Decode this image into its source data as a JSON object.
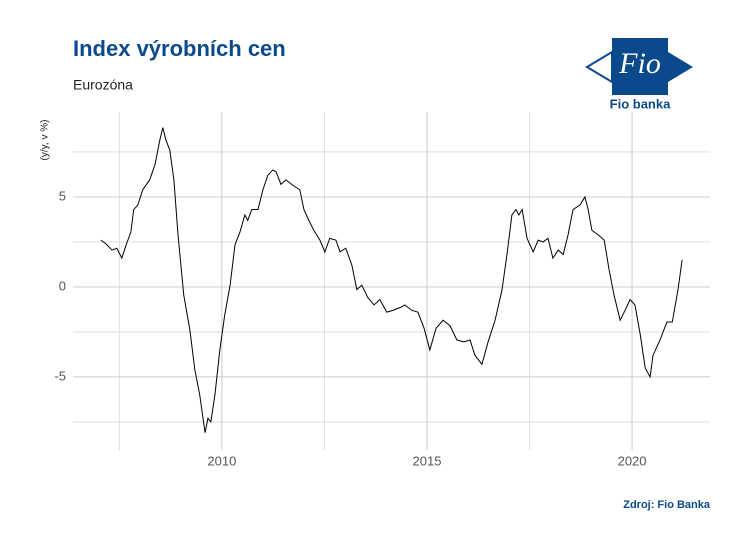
{
  "chart_data": {
    "type": "line",
    "title": "Index výrobních cen",
    "subtitle": "Eurozóna",
    "ylabel": "(y/y, v %)",
    "caption": "Zdroj: Fio Banka",
    "xlim": [
      2006.37,
      2021.9
    ],
    "xticks": [
      2010,
      2015,
      2020
    ],
    "x_minor_gridlines": [
      2007.5,
      2012.5,
      2017.5
    ],
    "ylim": [
      -9.06,
      9.72
    ],
    "yticks": [
      -5,
      0,
      5
    ],
    "y_minor_gridlines": [
      -7.5,
      -2.5,
      2.5,
      7.5
    ],
    "grid": true,
    "series": [
      {
        "color": "#000000",
        "x": [
          2007.05,
          2007.17,
          2007.32,
          2007.44,
          2007.56,
          2007.66,
          2007.78,
          2007.85,
          2007.95,
          2008.07,
          2008.24,
          2008.37,
          2008.49,
          2008.56,
          2008.63,
          2008.73,
          2008.83,
          2008.93,
          2009.07,
          2009.22,
          2009.34,
          2009.46,
          2009.54,
          2009.59,
          2009.66,
          2009.73,
          2009.83,
          2009.95,
          2010.07,
          2010.2,
          2010.32,
          2010.44,
          2010.56,
          2010.63,
          2010.73,
          2010.88,
          2011.0,
          2011.12,
          2011.24,
          2011.32,
          2011.44,
          2011.56,
          2011.73,
          2011.9,
          2012.0,
          2012.12,
          2012.24,
          2012.39,
          2012.51,
          2012.63,
          2012.78,
          2012.88,
          2013.02,
          2013.17,
          2013.29,
          2013.41,
          2013.56,
          2013.71,
          2013.85,
          2014.02,
          2014.17,
          2014.34,
          2014.46,
          2014.63,
          2014.78,
          2014.93,
          2015.07,
          2015.22,
          2015.39,
          2015.56,
          2015.73,
          2015.9,
          2016.05,
          2016.17,
          2016.34,
          2016.49,
          2016.66,
          2016.83,
          2016.95,
          2017.07,
          2017.17,
          2017.24,
          2017.32,
          2017.44,
          2017.59,
          2017.71,
          2017.83,
          2017.95,
          2018.07,
          2018.2,
          2018.32,
          2018.44,
          2018.56,
          2018.73,
          2018.85,
          2018.93,
          2019.02,
          2019.17,
          2019.32,
          2019.44,
          2019.56,
          2019.71,
          2019.83,
          2019.95,
          2020.07,
          2020.2,
          2020.32,
          2020.44,
          2020.51,
          2020.68,
          2020.85,
          2020.98,
          2021.12,
          2021.22
        ],
        "values": [
          2.6,
          2.4,
          2.05,
          2.15,
          1.6,
          2.3,
          3.05,
          4.3,
          4.55,
          5.4,
          5.95,
          6.8,
          8.2,
          8.85,
          8.2,
          7.6,
          5.95,
          2.9,
          -0.45,
          -2.4,
          -4.6,
          -6.0,
          -7.3,
          -8.1,
          -7.3,
          -7.5,
          -6.0,
          -3.5,
          -1.55,
          0.1,
          2.35,
          3.05,
          4.0,
          3.7,
          4.3,
          4.3,
          5.4,
          6.2,
          6.5,
          6.4,
          5.7,
          5.95,
          5.65,
          5.4,
          4.3,
          3.7,
          3.15,
          2.6,
          1.95,
          2.7,
          2.6,
          1.95,
          2.15,
          1.2,
          -0.15,
          0.1,
          -0.6,
          -1.0,
          -0.7,
          -1.4,
          -1.3,
          -1.15,
          -1.0,
          -1.3,
          -1.4,
          -2.3,
          -3.5,
          -2.3,
          -1.85,
          -2.15,
          -2.95,
          -3.05,
          -2.95,
          -3.8,
          -4.3,
          -3.05,
          -1.85,
          -0.15,
          1.8,
          4.0,
          4.3,
          4.0,
          4.3,
          2.7,
          1.95,
          2.6,
          2.5,
          2.7,
          1.6,
          2.05,
          1.8,
          2.9,
          4.3,
          4.55,
          5.0,
          4.3,
          3.15,
          2.9,
          2.6,
          0.95,
          -0.45,
          -1.85,
          -1.3,
          -0.7,
          -1.0,
          -2.65,
          -4.5,
          -5.0,
          -3.8,
          -2.95,
          -1.95,
          -1.95,
          -0.15,
          1.5
        ]
      }
    ]
  },
  "logo": {
    "mark": "Fio",
    "name": "Fio banka"
  }
}
